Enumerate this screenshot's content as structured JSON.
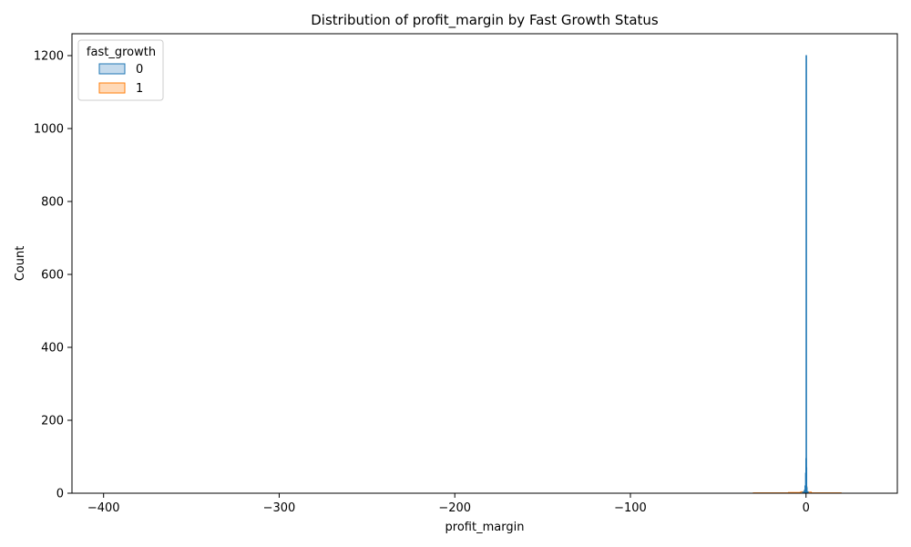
{
  "chart_data": {
    "type": "histogram",
    "title": "Distribution of profit_margin by Fast Growth Status",
    "xlabel": "profit_margin",
    "ylabel": "Count",
    "xlim": [
      -418,
      52
    ],
    "ylim": [
      0,
      1260
    ],
    "x_ticks": [
      -400,
      -300,
      -200,
      -100,
      0
    ],
    "x_tick_labels": [
      "−400",
      "−300",
      "−200",
      "−100",
      "0"
    ],
    "y_ticks": [
      0,
      200,
      400,
      600,
      800,
      1000,
      1200
    ],
    "y_tick_labels": [
      "0",
      "200",
      "400",
      "600",
      "800",
      "1000",
      "1200"
    ],
    "grid": false,
    "legend": {
      "title": "fast_growth",
      "placement": "top-left"
    },
    "series": [
      {
        "name": "0",
        "color": "#1f77b4",
        "bins": [
          {
            "x0": -2.0,
            "x1": -1.0,
            "count": 3
          },
          {
            "x0": -1.0,
            "x1": -0.6,
            "count": 8
          },
          {
            "x0": -0.6,
            "x1": -0.3,
            "count": 20
          },
          {
            "x0": -0.3,
            "x1": -0.1,
            "count": 55
          },
          {
            "x0": -0.1,
            "x1": 0.0,
            "count": 95
          },
          {
            "x0": 0.0,
            "x1": 0.1,
            "count": 1200
          },
          {
            "x0": 0.1,
            "x1": 0.3,
            "count": 70
          },
          {
            "x0": 0.3,
            "x1": 0.6,
            "count": 15
          },
          {
            "x0": 0.6,
            "x1": 1.2,
            "count": 4
          }
        ]
      },
      {
        "name": "1",
        "color": "#ff7f0e",
        "bins": [
          {
            "x0": -30,
            "x1": -10,
            "count": 1
          },
          {
            "x0": -10,
            "x1": -3,
            "count": 2
          },
          {
            "x0": -3,
            "x1": -0.5,
            "count": 4
          },
          {
            "x0": -0.5,
            "x1": 0.0,
            "count": 10
          },
          {
            "x0": 0.0,
            "x1": 0.5,
            "count": 18
          },
          {
            "x0": 0.5,
            "x1": 3,
            "count": 3
          },
          {
            "x0": 3,
            "x1": 20,
            "count": 1
          }
        ]
      }
    ]
  }
}
